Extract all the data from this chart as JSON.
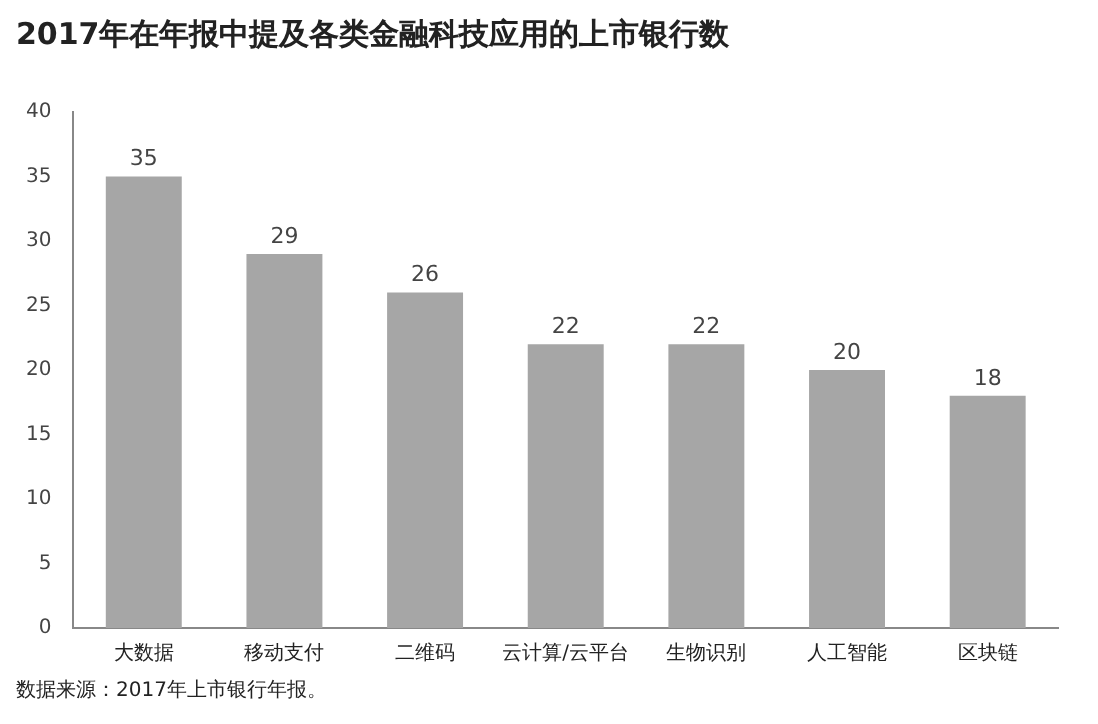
{
  "chart_data": {
    "type": "bar",
    "title": "2017年在年报中提及各类金融科技应用的上市银行数",
    "categories": [
      "大数据",
      "移动支付",
      "二维码",
      "云计算/云平台",
      "生物识别",
      "人工智能",
      "区块链"
    ],
    "values": [
      35,
      29,
      26,
      22,
      22,
      20,
      18
    ],
    "color": "#a6a6a6",
    "ylim": [
      0,
      40
    ],
    "yticks": [
      0,
      5,
      10,
      15,
      20,
      25,
      30,
      35,
      40
    ],
    "grid": false,
    "legend": false,
    "data_labels": true,
    "annotations": [
      "数据来源：2017年上市银行年报。"
    ]
  }
}
